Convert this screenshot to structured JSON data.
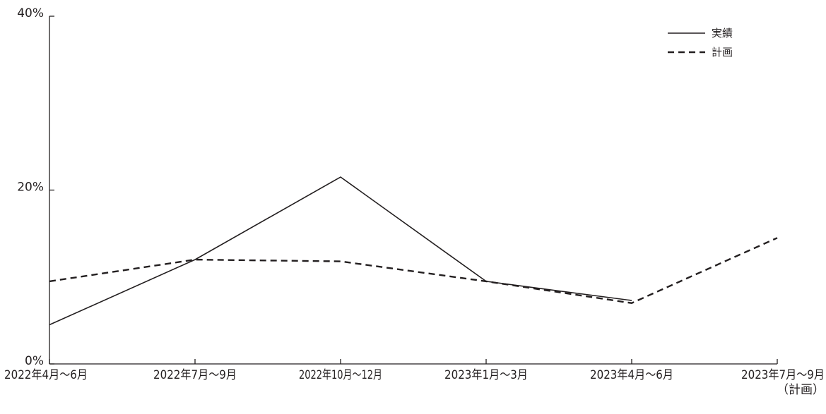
{
  "chart_data": {
    "type": "line",
    "categories": [
      "2022年4月～6月",
      "2022年7月～9月",
      "2022年10月～12月",
      "2023年1月～3月",
      "2023年4月～6月",
      "2023年7月～9月"
    ],
    "category_sublabels": [
      "",
      "",
      "",
      "",
      "",
      "（計画）"
    ],
    "series": [
      {
        "name": "実績",
        "style": "solid",
        "values": [
          4.5,
          12.0,
          21.5,
          9.5,
          7.3,
          null
        ]
      },
      {
        "name": "計画",
        "style": "dashed",
        "values": [
          9.5,
          12.0,
          11.8,
          9.5,
          7.0,
          14.5
        ]
      }
    ],
    "yticks": [
      "0%",
      "20%",
      "40%"
    ],
    "ylim": [
      0,
      40
    ],
    "y_unit": "%",
    "grid": false,
    "legend_position": "top-right",
    "colors": {
      "line": "#231f20",
      "axis": "#231f20",
      "background": "#ffffff"
    }
  }
}
